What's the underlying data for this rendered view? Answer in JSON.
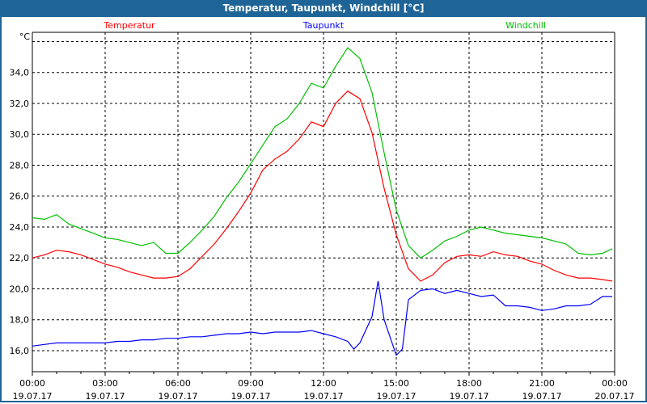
{
  "window": {
    "title": "Temperatur, Taupunkt, Windchill [°C]"
  },
  "chart_data": {
    "type": "line",
    "title": "Temperatur, Taupunkt, Windchill [°C]",
    "ylabel": "°C",
    "ylim": [
      14.64,
      36.6
    ],
    "xlim": [
      0,
      24
    ],
    "grid": true,
    "y_ticks": [
      16,
      18,
      20,
      22,
      24,
      26,
      28,
      30,
      32,
      34,
      36
    ],
    "y_tick_labels": [
      "16,0",
      "18,0",
      "20,0",
      "22,0",
      "24,0",
      "26,0",
      "28,0",
      "30,0",
      "32,0",
      "34,0",
      ""
    ],
    "x_ticks": [
      0,
      3,
      6,
      9,
      12,
      15,
      18,
      21,
      24
    ],
    "x_tick_labels": [
      [
        "00:00",
        "19.07.17"
      ],
      [
        "03:00",
        "19.07.17"
      ],
      [
        "06:00",
        "19.07.17"
      ],
      [
        "09:00",
        "19.07.17"
      ],
      [
        "12:00",
        "19.07.17"
      ],
      [
        "15:00",
        "19.07.17"
      ],
      [
        "18:00",
        "19.07.17"
      ],
      [
        "21:00",
        "19.07.17"
      ],
      [
        "00:00",
        "20.07.17"
      ]
    ],
    "series": [
      {
        "name": "Temperatur",
        "color": "#ff0000",
        "legend_pos": "top-left",
        "x": [
          0,
          0.5,
          1,
          1.5,
          2,
          2.5,
          3,
          3.5,
          4,
          4.5,
          5,
          5.5,
          6,
          6.5,
          7,
          7.5,
          8,
          8.5,
          9,
          9.5,
          10,
          10.5,
          11,
          11.5,
          12,
          12.5,
          13,
          13.5,
          14,
          14.5,
          15,
          15.5,
          16,
          16.5,
          17,
          17.5,
          18,
          18.5,
          19,
          19.5,
          20,
          20.5,
          21,
          21.5,
          22,
          22.5,
          23,
          23.5,
          23.9
        ],
        "values": [
          22.0,
          22.2,
          22.5,
          22.4,
          22.2,
          21.9,
          21.6,
          21.4,
          21.1,
          20.9,
          20.7,
          20.7,
          20.8,
          21.3,
          22.1,
          22.9,
          23.9,
          25.0,
          26.2,
          27.7,
          28.4,
          28.9,
          29.7,
          30.8,
          30.5,
          32.0,
          32.8,
          32.3,
          30.1,
          26.5,
          23.5,
          21.3,
          20.5,
          20.9,
          21.7,
          22.1,
          22.2,
          22.1,
          22.4,
          22.2,
          22.1,
          21.8,
          21.6,
          21.2,
          20.9,
          20.7,
          20.7,
          20.6,
          20.5
        ]
      },
      {
        "name": "Taupunkt",
        "color": "#0000ff",
        "legend_pos": "top-center",
        "x": [
          0,
          0.5,
          1,
          1.5,
          2,
          2.5,
          3,
          3.5,
          4,
          4.5,
          5,
          5.5,
          6,
          6.5,
          7,
          7.5,
          8,
          8.5,
          9,
          9.5,
          10,
          10.5,
          11,
          11.5,
          12,
          12.5,
          13,
          13.25,
          13.5,
          14,
          14.25,
          14.5,
          15,
          15.25,
          15.5,
          16,
          16.5,
          17,
          17.5,
          18,
          18.5,
          19,
          19.5,
          20,
          20.5,
          21,
          21.5,
          22,
          22.5,
          23,
          23.5,
          23.9
        ],
        "values": [
          16.3,
          16.4,
          16.5,
          16.5,
          16.5,
          16.5,
          16.5,
          16.6,
          16.6,
          16.7,
          16.7,
          16.8,
          16.8,
          16.9,
          16.9,
          17.0,
          17.1,
          17.1,
          17.2,
          17.1,
          17.2,
          17.2,
          17.2,
          17.3,
          17.1,
          16.9,
          16.6,
          16.1,
          16.5,
          18.2,
          20.5,
          18.0,
          15.7,
          16.1,
          19.3,
          19.9,
          20.0,
          19.7,
          19.9,
          19.7,
          19.5,
          19.6,
          18.9,
          18.9,
          18.8,
          18.6,
          18.7,
          18.9,
          18.9,
          19.0,
          19.5,
          19.5
        ]
      },
      {
        "name": "Windchill",
        "color": "#00c000",
        "legend_pos": "top-right",
        "x": [
          0,
          0.5,
          1,
          1.5,
          2,
          2.5,
          3,
          3.5,
          4,
          4.5,
          5,
          5.5,
          6,
          6.5,
          7,
          7.5,
          8,
          8.5,
          9,
          9.5,
          10,
          10.5,
          11,
          11.5,
          12,
          12.5,
          13,
          13.5,
          14,
          14.5,
          15,
          15.5,
          16,
          16.5,
          17,
          17.5,
          18,
          18.5,
          19,
          19.5,
          20,
          20.5,
          21,
          21.5,
          22,
          22.5,
          23,
          23.5,
          23.9
        ],
        "values": [
          24.6,
          24.5,
          24.8,
          24.2,
          23.9,
          23.6,
          23.3,
          23.2,
          23.0,
          22.8,
          23.0,
          22.3,
          22.3,
          23.0,
          23.8,
          24.7,
          25.9,
          26.9,
          28.1,
          29.3,
          30.5,
          31.0,
          32.0,
          33.3,
          33.0,
          34.4,
          35.6,
          34.9,
          32.7,
          28.8,
          25.1,
          22.8,
          22.0,
          22.5,
          23.1,
          23.4,
          23.8,
          24.0,
          23.8,
          23.6,
          23.5,
          23.4,
          23.3,
          23.1,
          22.9,
          22.3,
          22.2,
          22.3,
          22.6
        ]
      }
    ]
  }
}
